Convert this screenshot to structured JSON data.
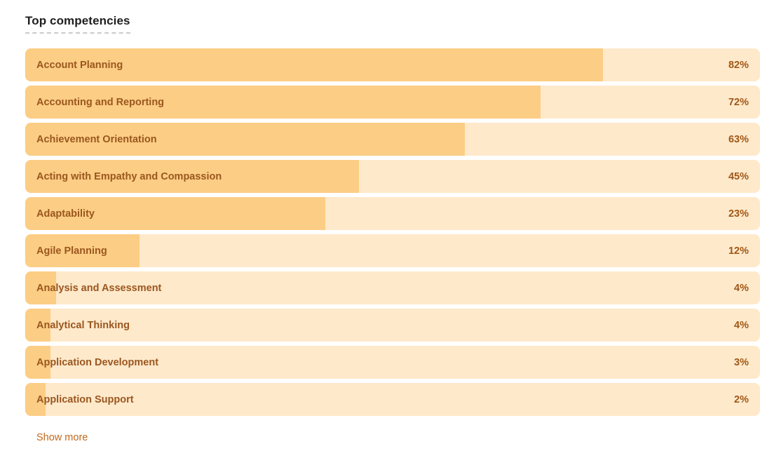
{
  "header": {
    "title": "Top competencies"
  },
  "chart_data": {
    "type": "bar",
    "orientation": "horizontal",
    "title": "Top competencies",
    "categories": [
      "Account Planning",
      "Accounting and Reporting",
      "Achievement Orientation",
      "Acting with Empathy and Compassion",
      "Adaptability",
      "Agile Planning",
      "Analysis and Assessment",
      "Analytical Thinking",
      "Application Development",
      "Application Support"
    ],
    "values": [
      82,
      72,
      63,
      45,
      23,
      12,
      4,
      4,
      3,
      2
    ],
    "value_labels": [
      "82%",
      "72%",
      "63%",
      "45%",
      "23%",
      "12%",
      "4%",
      "4%",
      "3%",
      "2%"
    ],
    "value_suffix": "%",
    "xlim": [
      0,
      100
    ],
    "layout_hints": {
      "bar_visual_width_pct": [
        78.6,
        70.1,
        59.8,
        45.4,
        40.8,
        15.6,
        4.2,
        3.4,
        3.4,
        2.8
      ],
      "category_label_position": "inside-left",
      "value_label_position": "track-right",
      "grid": false,
      "axes_visible": false,
      "title_underline_style": "dashed"
    },
    "colors": {
      "bar_fill": "#FCCD84",
      "bar_track": "#FFE9CB",
      "category_label_text": "#9A571F",
      "value_text": "#9F5716",
      "title_text": "#1E1E1E"
    }
  },
  "footer": {
    "show_more_label": "Show more",
    "link_color": "#C2691D"
  }
}
